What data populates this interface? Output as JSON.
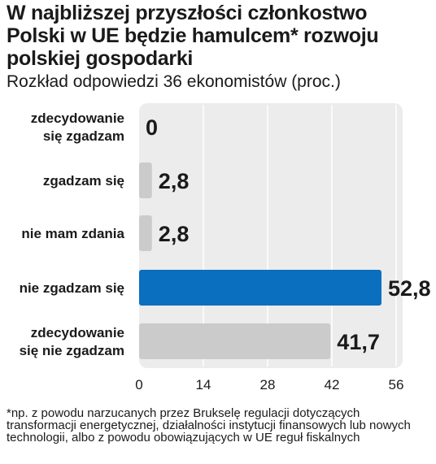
{
  "title": "W najbliższej przyszłości członkostwo Polski w UE będzie hamulcem* rozwoju polskiej gospodarki",
  "subtitle": "Rozkład odpowiedzi 36 ekonomistów (proc.)",
  "footnote": "*np. z powodu narzucanych przez Brukselę regulacji dotyczących transformacji energetycznej, działalności instytucji finansowych lub nowych technologii, albo z powodu obowiązujących w UE reguł fiskalnych",
  "colors": {
    "highlight": "#0a6fbf",
    "bar": "#cbcbcb",
    "panel": "#ececec",
    "text": "#1a1a1a"
  },
  "chart_data": {
    "type": "bar",
    "orientation": "horizontal",
    "categories": [
      [
        "zdecydowanie",
        "się zgadzam"
      ],
      [
        "zgadzam się"
      ],
      [
        "nie mam zdania"
      ],
      [
        "nie zgadzam się"
      ],
      [
        "zdecydowanie",
        "się nie zgadzam"
      ]
    ],
    "values": [
      0,
      2.8,
      2.8,
      52.8,
      41.7
    ],
    "value_labels": [
      "0",
      "2,8",
      "2,8",
      "52,8",
      "41,7"
    ],
    "highlight_index": 3,
    "xlim": [
      0,
      56
    ],
    "xticks": [
      "0",
      "14",
      "28",
      "42",
      "56"
    ],
    "grid": true,
    "xlabel": "",
    "ylabel": ""
  }
}
